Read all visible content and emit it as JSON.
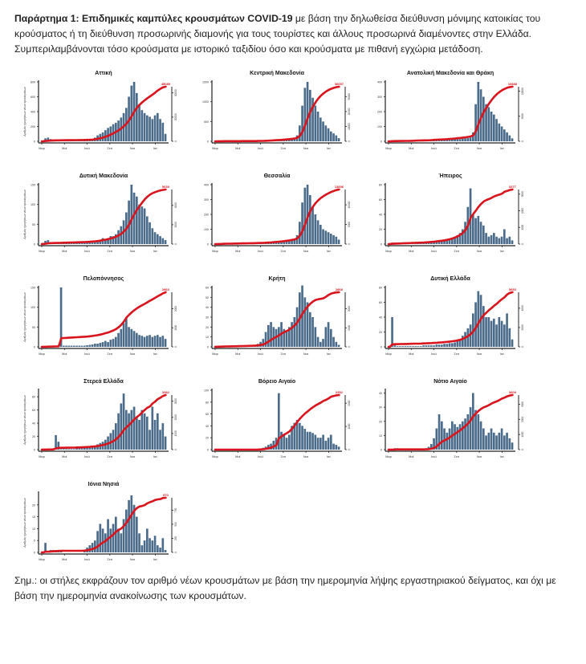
{
  "intro": {
    "bold": "Παράρτημα 1: Επιδημικές καμπύλες κρουσμάτων COVID-19",
    "rest": " με βάση την δηλωθείσα διεύθυνση μόνιμης κατοικίας του κρούσματος ή τη διεύθυνση προσωρινής διαμονής για τους τουρίστες και άλλους προσωρινά διαμένοντες στην Ελλάδα. Συμπεριλαμβάνονται τόσο κρούσματα με ιστορικό ταξιδίου όσο και κρούσματα με πιθανή εγχώρια μετάδοση."
  },
  "note": "Σημ.: οι στήλες εκφράζουν τον αριθμό νέων κρουσμάτων με βάση την ημερομηνία λήψης εργαστηριακού δείγματος, και όχι με βάση την ημερομηνία ανακοίνωσης των κρουσμάτων.",
  "colors": {
    "bars": "#4b6b8a",
    "cumulative": "#d9141c",
    "end_label": "#d9141c"
  },
  "chart_data": [
    {
      "type": "bar",
      "title": "Αττική",
      "ylabel": "Αριθμός ημερήσιων νέων κρουσμάτων",
      "xticks": [
        "Μαρ",
        "Μαϊ",
        "Ιουλ",
        "Σεπ",
        "Νοε",
        "Ιαν"
      ],
      "ylim": [
        0,
        800
      ],
      "yticks": [
        0,
        200,
        400,
        600,
        800
      ],
      "cumulative_end": 45089,
      "values": [
        10,
        40,
        50,
        30,
        20,
        15,
        10,
        8,
        5,
        5,
        5,
        5,
        5,
        5,
        5,
        8,
        10,
        15,
        20,
        30,
        50,
        80,
        100,
        120,
        150,
        180,
        200,
        230,
        250,
        280,
        320,
        380,
        450,
        600,
        750,
        800,
        650,
        500,
        420,
        380,
        350,
        330,
        300,
        350,
        380,
        300,
        250,
        100
      ]
    },
    {
      "type": "bar",
      "title": "Κεντρική Μακεδονία",
      "ylabel": "",
      "xticks": [
        "Μαρ",
        "Μαϊ",
        "Ιουλ",
        "Σεπ",
        "Νοε",
        "Ιαν"
      ],
      "ylim": [
        0,
        1500
      ],
      "yticks": [
        0,
        500,
        1000,
        1500
      ],
      "cumulative_end": 36657,
      "values": [
        5,
        10,
        8,
        5,
        3,
        2,
        2,
        2,
        2,
        2,
        2,
        2,
        2,
        3,
        3,
        5,
        8,
        10,
        15,
        20,
        25,
        30,
        30,
        35,
        40,
        40,
        45,
        50,
        50,
        60,
        80,
        150,
        400,
        900,
        1350,
        1500,
        1300,
        1100,
        900,
        750,
        600,
        500,
        400,
        330,
        250,
        200,
        150,
        80
      ]
    },
    {
      "type": "bar",
      "title": "Ανατολική Μακεδονία και Θράκη",
      "ylabel": "",
      "xticks": [
        "Μαρ",
        "Μαϊ",
        "Ιουλ",
        "Σεπ",
        "Νοε",
        "Ιαν"
      ],
      "ylim": [
        0,
        400
      ],
      "yticks": [
        0,
        100,
        200,
        300,
        400
      ],
      "cumulative_end": 10888,
      "values": [
        2,
        5,
        5,
        3,
        2,
        2,
        2,
        2,
        3,
        5,
        8,
        6,
        4,
        3,
        3,
        5,
        8,
        15,
        8,
        6,
        6,
        8,
        10,
        12,
        12,
        14,
        15,
        15,
        18,
        20,
        22,
        25,
        60,
        250,
        400,
        350,
        300,
        250,
        230,
        200,
        180,
        150,
        120,
        100,
        80,
        60,
        40,
        20
      ]
    },
    {
      "type": "bar",
      "title": "Δυτική Μακεδονία",
      "ylabel": "Αριθμός ημερήσιων νέων κρουσμάτων",
      "xticks": [
        "Μαρ",
        "Μαϊ",
        "Ιουλ",
        "Σεπ",
        "Νοε",
        "Ιαν"
      ],
      "ylim": [
        0,
        150
      ],
      "yticks": [
        0,
        50,
        100,
        150
      ],
      "cumulative_end": 5639,
      "values": [
        3,
        8,
        10,
        5,
        3,
        2,
        2,
        2,
        2,
        2,
        2,
        2,
        2,
        2,
        2,
        3,
        3,
        4,
        5,
        5,
        6,
        8,
        10,
        15,
        12,
        15,
        20,
        20,
        25,
        35,
        45,
        60,
        80,
        110,
        150,
        130,
        120,
        100,
        95,
        90,
        70,
        55,
        40,
        30,
        25,
        20,
        15,
        10
      ]
    },
    {
      "type": "bar",
      "title": "Θεσσαλία",
      "ylabel": "",
      "xticks": [
        "Μαρ",
        "Μαϊ",
        "Ιουλ",
        "Σεπ",
        "Νοε",
        "Ιαν"
      ],
      "ylim": [
        0,
        400
      ],
      "yticks": [
        0,
        100,
        200,
        300,
        400
      ],
      "cumulative_end": 13896,
      "values": [
        2,
        3,
        3,
        8,
        5,
        3,
        3,
        3,
        3,
        3,
        3,
        3,
        3,
        3,
        3,
        3,
        4,
        5,
        6,
        8,
        10,
        10,
        12,
        12,
        15,
        15,
        18,
        20,
        20,
        25,
        30,
        60,
        150,
        280,
        380,
        400,
        330,
        250,
        200,
        160,
        130,
        100,
        90,
        80,
        70,
        60,
        50,
        30
      ]
    },
    {
      "type": "bar",
      "title": "Ήπειρος",
      "ylabel": "",
      "xticks": [
        "Μαρ",
        "Μαϊ",
        "Ιουλ",
        "Σεπ",
        "Νοε",
        "Ιαν"
      ],
      "ylim": [
        0,
        80
      ],
      "yticks": [
        0,
        20,
        40,
        60,
        80
      ],
      "cumulative_end": 3277,
      "values": [
        1,
        2,
        2,
        1,
        1,
        1,
        1,
        1,
        1,
        1,
        1,
        1,
        1,
        1,
        2,
        2,
        2,
        3,
        3,
        3,
        4,
        4,
        5,
        6,
        8,
        10,
        12,
        15,
        20,
        30,
        50,
        75,
        40,
        35,
        38,
        30,
        25,
        15,
        10,
        12,
        15,
        10,
        8,
        10,
        20,
        8,
        10,
        5
      ]
    },
    {
      "type": "bar",
      "title": "Πελοπόννησος",
      "ylabel": "Αριθμός ημερήσιων νέων κρουσμάτων",
      "xticks": [
        "Μαρ",
        "Μαϊ",
        "Ιουλ",
        "Σεπ",
        "Νοε",
        "Ιαν"
      ],
      "ylim": [
        0,
        150
      ],
      "yticks": [
        0,
        50,
        100,
        150
      ],
      "cumulative_end": 2863,
      "values": [
        1,
        1,
        2,
        1,
        1,
        2,
        2,
        150,
        3,
        3,
        3,
        3,
        3,
        3,
        3,
        3,
        3,
        4,
        5,
        6,
        8,
        8,
        10,
        12,
        15,
        12,
        18,
        20,
        25,
        35,
        45,
        60,
        75,
        50,
        45,
        40,
        35,
        30,
        28,
        25,
        28,
        30,
        25,
        28,
        30,
        25,
        28,
        20
      ]
    },
    {
      "type": "bar",
      "title": "Κρήτη",
      "ylabel": "",
      "xticks": [
        "Μαρ",
        "Μαϊ",
        "Ιουλ",
        "Σεπ",
        "Νοε",
        "Ιαν"
      ],
      "ylim": [
        0,
        60
      ],
      "yticks": [
        0,
        10,
        20,
        30,
        40,
        50,
        60
      ],
      "cumulative_end": 2868,
      "values": [
        1,
        1,
        1,
        1,
        1,
        1,
        1,
        1,
        1,
        1,
        1,
        1,
        1,
        1,
        1,
        2,
        3,
        5,
        8,
        15,
        22,
        25,
        20,
        18,
        20,
        25,
        18,
        15,
        20,
        25,
        30,
        40,
        55,
        62,
        50,
        45,
        35,
        30,
        20,
        10,
        5,
        8,
        20,
        25,
        18,
        10,
        5,
        2
      ]
    },
    {
      "type": "bar",
      "title": "Δυτική Ελλάδα",
      "ylabel": "",
      "xticks": [
        "Μαρ",
        "Μαϊ",
        "Ιουλ",
        "Σεπ",
        "Νοε",
        "Ιαν"
      ],
      "ylim": [
        0,
        80
      ],
      "yticks": [
        0,
        20,
        40,
        60,
        80
      ],
      "cumulative_end": 5653,
      "values": [
        1,
        40,
        2,
        1,
        1,
        1,
        1,
        1,
        1,
        1,
        1,
        1,
        1,
        2,
        2,
        2,
        2,
        2,
        3,
        3,
        3,
        4,
        4,
        5,
        5,
        6,
        8,
        10,
        15,
        20,
        25,
        30,
        45,
        60,
        75,
        70,
        55,
        40,
        40,
        35,
        38,
        30,
        40,
        35,
        30,
        45,
        25,
        10
      ]
    },
    {
      "type": "bar",
      "title": "Στερεά Ελλάδα",
      "ylabel": "Αριθμός ημερήσιων νέων κρουσμάτων",
      "xticks": [
        "Μαρ",
        "Μαϊ",
        "Ιουλ",
        "Σεπ",
        "Νοε",
        "Ιαν"
      ],
      "ylim": [
        0,
        90
      ],
      "yticks": [
        0,
        20,
        40,
        60,
        80
      ],
      "cumulative_end": 3382,
      "values": [
        1,
        1,
        1,
        1,
        2,
        22,
        12,
        1,
        1,
        1,
        1,
        1,
        1,
        2,
        2,
        3,
        3,
        3,
        4,
        5,
        6,
        8,
        10,
        12,
        15,
        20,
        25,
        30,
        40,
        55,
        70,
        85,
        60,
        55,
        60,
        65,
        50,
        45,
        60,
        55,
        50,
        30,
        65,
        45,
        55,
        30,
        40,
        20
      ]
    },
    {
      "type": "bar",
      "title": "Βόρειο Αιγαίο",
      "ylabel": "",
      "xticks": [
        "Μαρ",
        "Μαϊ",
        "Ιουλ",
        "Σεπ",
        "Νοε",
        "Ιαν"
      ],
      "ylim": [
        0,
        100
      ],
      "yticks": [
        0,
        20,
        40,
        60,
        80,
        100
      ],
      "cumulative_end": 2352,
      "values": [
        0,
        0,
        0,
        0,
        0,
        0,
        0,
        0,
        0,
        0,
        0,
        0,
        0,
        0,
        0,
        0,
        1,
        2,
        3,
        5,
        8,
        10,
        15,
        20,
        95,
        30,
        25,
        20,
        25,
        40,
        45,
        50,
        45,
        40,
        35,
        30,
        30,
        28,
        25,
        20,
        20,
        25,
        15,
        20,
        25,
        10,
        8,
        5
      ]
    },
    {
      "type": "bar",
      "title": "Νότιο Αιγαίο",
      "ylabel": "",
      "xticks": [
        "Μαρ",
        "Μαϊ",
        "Ιουλ",
        "Σεπ",
        "Νοε",
        "Ιαν"
      ],
      "ylim": [
        0,
        42
      ],
      "yticks": [
        0,
        10,
        20,
        30,
        40
      ],
      "cumulative_end": 3609,
      "values": [
        0,
        0,
        1,
        1,
        0,
        0,
        0,
        0,
        0,
        0,
        0,
        0,
        0,
        0,
        1,
        2,
        4,
        8,
        15,
        25,
        20,
        15,
        12,
        15,
        20,
        18,
        16,
        18,
        20,
        22,
        25,
        30,
        40,
        28,
        25,
        20,
        15,
        10,
        12,
        15,
        12,
        10,
        12,
        15,
        10,
        12,
        8,
        5
      ]
    },
    {
      "type": "bar",
      "title": "Ιόνια Νησιά",
      "ylabel": "Αριθμός ημερήσιων νέων κρουσμάτων",
      "xticks": [
        "Μαρ",
        "Μαϊ",
        "Ιουλ",
        "Σεπ",
        "Νοε",
        "Ιαν"
      ],
      "ylim": [
        0,
        25
      ],
      "yticks": [
        0,
        5,
        10,
        15,
        20
      ],
      "cumulative_end": 970,
      "values": [
        0,
        4,
        0,
        1,
        1,
        1,
        1,
        1,
        0,
        0,
        0,
        0,
        0,
        0,
        0,
        0,
        1,
        2,
        3,
        4,
        5,
        9,
        12,
        10,
        8,
        14,
        10,
        12,
        15,
        10,
        8,
        14,
        18,
        22,
        24,
        20,
        15,
        8,
        3,
        5,
        10,
        6,
        5,
        7,
        3,
        2,
        6,
        1
      ]
    }
  ]
}
